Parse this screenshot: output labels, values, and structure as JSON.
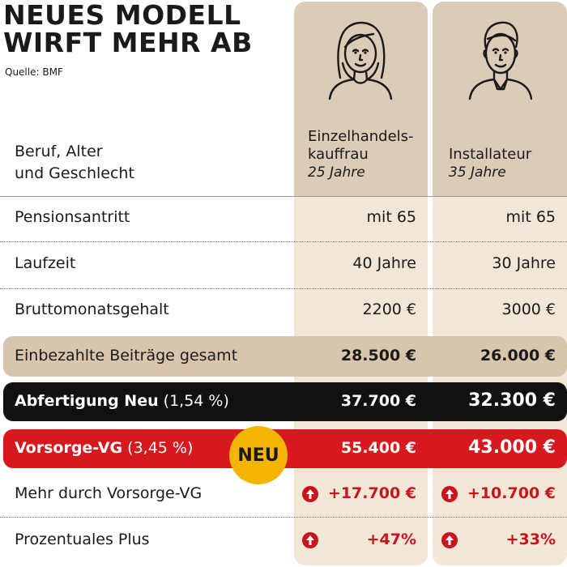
{
  "title": {
    "line1": "NEUES MODELL",
    "line2": "WIRFT MEHR AB"
  },
  "source": "Quelle: BMF",
  "columns": [
    {
      "job_line1": "Einzelhandels-",
      "job_line2": "kauffrau",
      "age": "25 Jahre",
      "icon": "woman-avatar-icon"
    },
    {
      "job_line1": "Installateur",
      "age": "35 Jahre",
      "icon": "man-avatar-icon"
    }
  ],
  "header_label": {
    "line1": "Beruf, Alter",
    "line2": "und Geschlecht"
  },
  "badge": "NEU",
  "chart_data": {
    "type": "table",
    "columns": [
      "Einzelhandelskauffrau 25 Jahre",
      "Installateur 35 Jahre"
    ],
    "rows": [
      {
        "label": "Pensionsantritt",
        "values": [
          "mit 65",
          "mit 65"
        ]
      },
      {
        "label": "Laufzeit",
        "values": [
          "40 Jahre",
          "30 Jahre"
        ]
      },
      {
        "label": "Bruttomonatsgehalt",
        "values": [
          "2200 €",
          "3000 €"
        ]
      },
      {
        "label": "Einbezahlte Beiträge gesamt",
        "values": [
          "28.500 €",
          "26.000 €"
        ]
      },
      {
        "label": "Abfertigung Neu",
        "note": "(1,54 %)",
        "values": [
          "37.700 €",
          "32.300 €"
        ]
      },
      {
        "label": "Vorsorge-VG",
        "note": "(3,45 %)",
        "values": [
          "55.400 €",
          "43.000 €"
        ]
      },
      {
        "label": "Mehr durch Vorsorge-VG",
        "values": [
          "+17.700 €",
          "+10.700 €"
        ]
      },
      {
        "label": "Prozentuales Plus",
        "values": [
          "+47%",
          "+33%"
        ]
      }
    ]
  },
  "colors": {
    "column_bg": "#f2e6d6",
    "column_header": "#dccbb6",
    "paid_band": "#d9c5ad",
    "abfertigung_band": "#111111",
    "vorsorge_band": "#d7191f",
    "badge": "#f5b400",
    "gain": "#c8141c"
  },
  "icons": {
    "gain": "arrow-up-circle-icon"
  }
}
